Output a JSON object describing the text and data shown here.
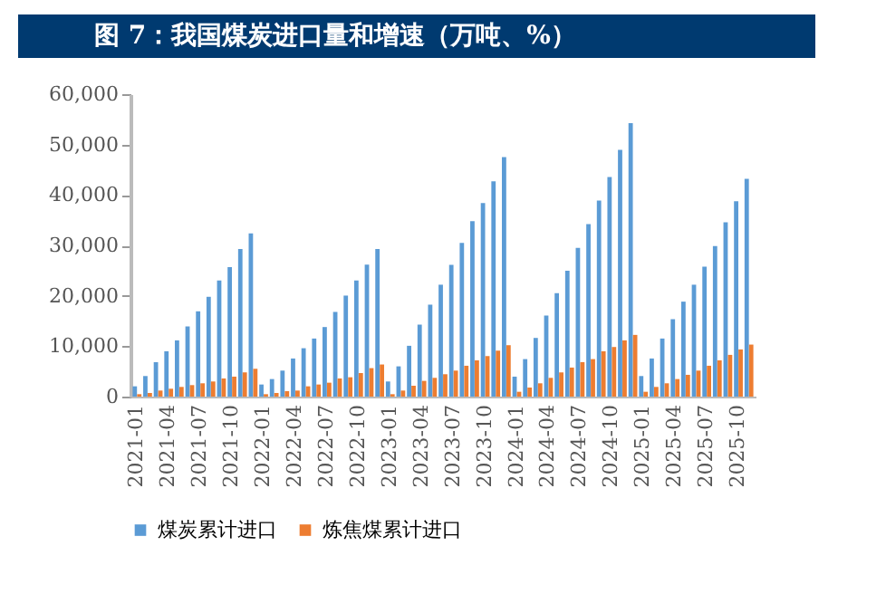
{
  "chart_data": {
    "type": "bar",
    "title": "图 7：我国煤炭进口量和增速（万吨、%）",
    "categories": [
      "2021-01",
      null,
      null,
      "2021-04",
      null,
      null,
      "2021-07",
      null,
      null,
      "2021-10",
      null,
      null,
      "2022-01",
      null,
      null,
      "2022-04",
      null,
      null,
      "2022-07",
      null,
      null,
      "2022-10",
      null,
      null,
      "2023-01",
      null,
      null,
      "2023-04",
      null,
      null,
      "2023-07",
      null,
      null,
      "2023-10",
      null,
      null,
      "2024-01",
      null,
      null,
      "2024-04",
      null,
      null,
      "2024-07",
      null,
      null,
      "2024-10",
      null,
      null,
      "2025-01",
      null,
      null,
      "2025-04",
      null,
      null,
      "2025-07",
      null,
      null,
      "2025-10",
      null
    ],
    "series": [
      {
        "name": "煤炭累计进口",
        "color": "#5b9bd5",
        "values": [
          2040,
          4080,
          6840,
          9000,
          11160,
          13920,
          16920,
          19800,
          23040,
          25680,
          29280,
          32400,
          2400,
          3480,
          5160,
          7560,
          9600,
          11520,
          13800,
          16800,
          20040,
          23040,
          26200,
          29300,
          3000,
          6000,
          10080,
          14280,
          18240,
          22200,
          26160,
          30480,
          34800,
          38400,
          42720,
          47520,
          3960,
          7440,
          11640,
          16080,
          20520,
          24960,
          29520,
          34200,
          38880,
          43560,
          48960,
          54240,
          4080,
          7560,
          11520,
          15360,
          18840,
          22200,
          25800,
          29880,
          34560,
          38760,
          43200
        ]
      },
      {
        "name": "炼焦煤累计进口",
        "color": "#ed7d31",
        "values": [
          480,
          720,
          1200,
          1560,
          1920,
          2280,
          2640,
          3000,
          3600,
          3960,
          4800,
          5520,
          480,
          720,
          1080,
          1200,
          2040,
          2400,
          2760,
          3600,
          3840,
          4680,
          5650,
          6370,
          480,
          1200,
          2160,
          3120,
          3720,
          4440,
          5160,
          6120,
          7200,
          8040,
          9120,
          10200,
          960,
          1800,
          2640,
          3720,
          4800,
          5760,
          6840,
          7440,
          9000,
          9840,
          11160,
          12240,
          960,
          1920,
          2640,
          3480,
          4320,
          5160,
          6120,
          7200,
          8280,
          9360,
          10320
        ]
      }
    ],
    "ylim": [
      0,
      60000
    ],
    "yticks": [
      0,
      {
        "value": 10000,
        "label": "10,000"
      },
      {
        "value": 20000,
        "label": "20,000"
      },
      {
        "value": 30000,
        "label": "30,000"
      },
      {
        "value": 40000,
        "label": "40,000"
      },
      {
        "value": 50000,
        "label": "50,000"
      },
      {
        "value": 60000,
        "label": "60,000"
      }
    ],
    "grid": false,
    "legend": "bottom"
  }
}
